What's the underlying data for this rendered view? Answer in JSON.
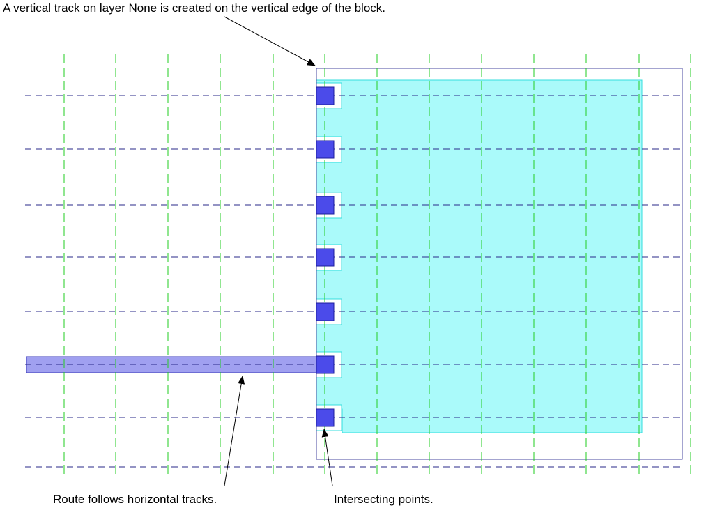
{
  "annotations": {
    "top": "A vertical track on layer None is created on the vertical edge of the block.",
    "route": "Route follows horizontal tracks.",
    "intersect": "Intersecting points."
  },
  "colors": {
    "vertical_track": "#22cc22",
    "horizontal_track": "#2a2a8a",
    "block_outline": "#4a4aa0",
    "block_fill": "#aafafa",
    "block_fill_edge": "#33dddd",
    "pin_fill": "#4b4bea",
    "pin_edge": "#1c1c9c",
    "route_fill": "#a0a0f0",
    "route_edge": "#3a3ab8",
    "arrow": "#000000"
  },
  "diagram": {
    "vertical_track_count": 13,
    "horizontal_track_count": 8,
    "pin_count": 7
  }
}
